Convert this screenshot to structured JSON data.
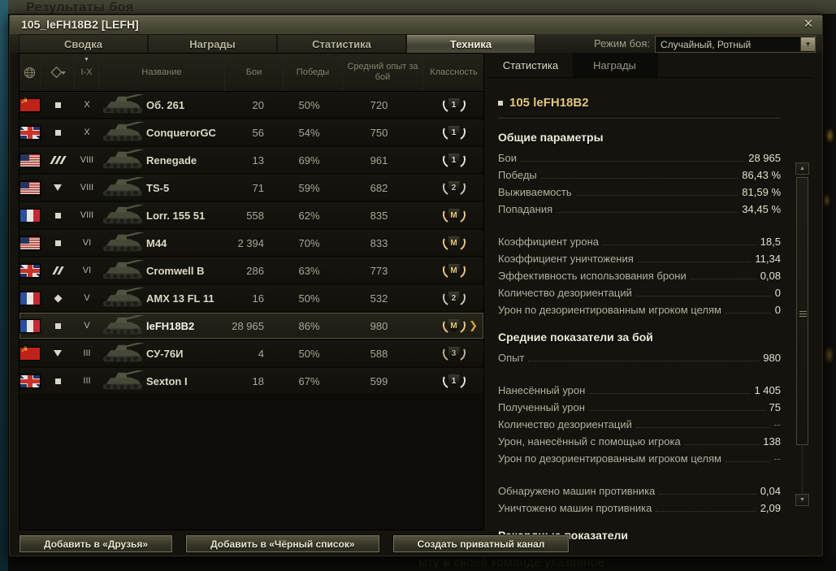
{
  "background": {
    "top_text": "Результаты боя",
    "bottom_text": "ыту в своей команде указанное"
  },
  "window": {
    "title": "105_leFH18B2 [LEFH]",
    "close_label": "✕"
  },
  "tabs": {
    "items": [
      "Сводка",
      "Награды",
      "Статистика",
      "Техника"
    ],
    "active": "Техника"
  },
  "battle_mode": {
    "label": "Режим боя:",
    "value": "Случайный, Ротный",
    "arrow": "▼"
  },
  "table": {
    "headers": {
      "globe_icon": "globe",
      "type_icon": "vehicle-type-filter",
      "sort_mark": "▼",
      "tier": "I-X",
      "name": "Название",
      "battles": "Бои",
      "wins": "Победы",
      "avg_xp": "Средний опыт за бой",
      "class": "Классность"
    },
    "rows": [
      {
        "nation": "ussr",
        "type": "spg",
        "tier": "X",
        "name": "Об. 261",
        "battles": "20",
        "wins": "50%",
        "xp": "720",
        "class": "1",
        "selected": false
      },
      {
        "nation": "uk",
        "type": "spg",
        "tier": "X",
        "name": "ConquerorGC",
        "battles": "56",
        "wins": "54%",
        "xp": "750",
        "class": "1",
        "selected": false
      },
      {
        "nation": "usa",
        "type": "heavy",
        "tier": "VIII",
        "name": "Renegade",
        "battles": "13",
        "wins": "69%",
        "xp": "961",
        "class": "1",
        "selected": false
      },
      {
        "nation": "usa",
        "type": "td",
        "tier": "VIII",
        "name": "TS-5",
        "battles": "71",
        "wins": "59%",
        "xp": "682",
        "class": "2",
        "selected": false
      },
      {
        "nation": "france",
        "type": "spg",
        "tier": "VIII",
        "name": "Lorr. 155 51",
        "battles": "558",
        "wins": "62%",
        "xp": "835",
        "class": "M",
        "selected": false
      },
      {
        "nation": "usa",
        "type": "spg",
        "tier": "VI",
        "name": "M44",
        "battles": "2 394",
        "wins": "70%",
        "xp": "833",
        "class": "M",
        "selected": false
      },
      {
        "nation": "uk",
        "type": "medium",
        "tier": "VI",
        "name": "Cromwell B",
        "battles": "286",
        "wins": "63%",
        "xp": "773",
        "class": "M",
        "selected": false
      },
      {
        "nation": "france",
        "type": "light",
        "tier": "V",
        "name": "AMX 13 FL 11",
        "battles": "16",
        "wins": "50%",
        "xp": "532",
        "class": "2",
        "selected": false
      },
      {
        "nation": "france",
        "type": "spg",
        "tier": "V",
        "name": "leFH18B2",
        "battles": "28 965",
        "wins": "86%",
        "xp": "980",
        "class": "M",
        "selected": true
      },
      {
        "nation": "ussr",
        "type": "td",
        "tier": "III",
        "name": "СУ-76И",
        "battles": "4",
        "wins": "50%",
        "xp": "588",
        "class": "3",
        "selected": false
      },
      {
        "nation": "uk",
        "type": "spg",
        "tier": "III",
        "name": "Sexton I",
        "battles": "18",
        "wins": "67%",
        "xp": "599",
        "class": "1",
        "selected": false
      }
    ],
    "selected_chevron": "❯"
  },
  "panel": {
    "tabs": {
      "items": [
        "Статистика",
        "Награды"
      ],
      "active": "Статистика"
    },
    "vehicle_title": "105 leFH18B2",
    "groups": [
      {
        "header": "Общие параметры",
        "rows": [
          {
            "label": "Бои",
            "value": "28 965",
            "gap": false,
            "dim": false
          },
          {
            "label": "Победы",
            "value": "86,43 %",
            "gap": false,
            "dim": false
          },
          {
            "label": "Выживаемость",
            "value": "81,59 %",
            "gap": false,
            "dim": false
          },
          {
            "label": "Попадания",
            "value": "34,45 %",
            "gap": false,
            "dim": false
          },
          {
            "label": "Коэффициент урона",
            "value": "18,5",
            "gap": true,
            "dim": false
          },
          {
            "label": "Коэффициент уничтожения",
            "value": "11,34",
            "gap": false,
            "dim": false
          },
          {
            "label": "Эффективность использования брони",
            "value": "0,08",
            "gap": false,
            "dim": false
          },
          {
            "label": "Количество дезориентаций",
            "value": "0",
            "gap": false,
            "dim": false
          },
          {
            "label": "Урон по дезориентированным игроком целям",
            "value": "0",
            "gap": false,
            "dim": false
          }
        ]
      },
      {
        "header": "Средние показатели за бой",
        "rows": [
          {
            "label": "Опыт",
            "value": "980",
            "gap": false,
            "dim": false
          },
          {
            "label": "Нанесённый урон",
            "value": "1 405",
            "gap": true,
            "dim": false
          },
          {
            "label": "Полученный урон",
            "value": "75",
            "gap": false,
            "dim": false
          },
          {
            "label": "Количество дезориентаций",
            "value": "--",
            "gap": false,
            "dim": true
          },
          {
            "label": "Урон, нанесённый с помощью игрока",
            "value": "138",
            "gap": false,
            "dim": false
          },
          {
            "label": "Урон по дезориентированным игроком целям",
            "value": "--",
            "gap": false,
            "dim": true
          },
          {
            "label": "Обнаружено машин противника",
            "value": "0,04",
            "gap": true,
            "dim": false
          },
          {
            "label": "Уничтожено машин противника",
            "value": "2,09",
            "gap": false,
            "dim": false
          }
        ]
      },
      {
        "header": "Рекордные показатели",
        "rows": []
      }
    ]
  },
  "footer": {
    "buttons": [
      "Добавить в «Друзья»",
      "Добавить в «Чёрный список»",
      "Создать приватный канал"
    ]
  }
}
